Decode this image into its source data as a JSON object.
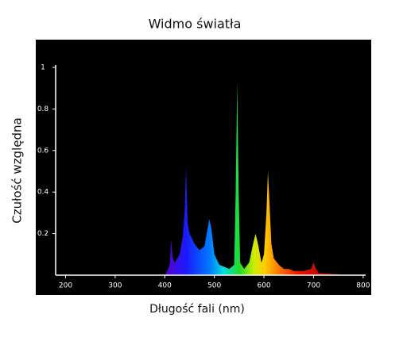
{
  "chart_data": {
    "type": "area",
    "title": "Widmo światła",
    "xlabel": "Długość fali (nm)",
    "ylabel": "Czułość względna",
    "x": [
      400,
      405,
      410,
      413,
      416,
      420,
      430,
      436,
      440,
      443,
      446,
      450,
      460,
      470,
      480,
      486,
      490,
      494,
      500,
      510,
      520,
      530,
      540,
      543,
      546,
      549,
      552,
      560,
      570,
      578,
      583,
      588,
      595,
      600,
      605,
      608,
      611,
      615,
      620,
      630,
      640,
      650,
      660,
      680,
      695,
      700,
      705,
      710,
      750,
      760
    ],
    "y": [
      0,
      0.02,
      0.05,
      0.17,
      0.08,
      0.06,
      0.1,
      0.18,
      0.3,
      0.52,
      0.25,
      0.2,
      0.15,
      0.12,
      0.14,
      0.22,
      0.27,
      0.22,
      0.1,
      0.05,
      0.04,
      0.03,
      0.05,
      0.4,
      0.93,
      0.4,
      0.06,
      0.03,
      0.06,
      0.15,
      0.2,
      0.15,
      0.06,
      0.1,
      0.3,
      0.5,
      0.35,
      0.15,
      0.08,
      0.05,
      0.03,
      0.03,
      0.02,
      0.02,
      0.03,
      0.06,
      0.03,
      0.01,
      0.005,
      0
    ],
    "xlim": [
      180,
      805
    ],
    "ylim": [
      0,
      1
    ],
    "xticks": [
      200,
      300,
      400,
      500,
      600,
      700,
      800
    ],
    "yticks": [
      0.2,
      0.4,
      0.6,
      0.8,
      1
    ]
  }
}
